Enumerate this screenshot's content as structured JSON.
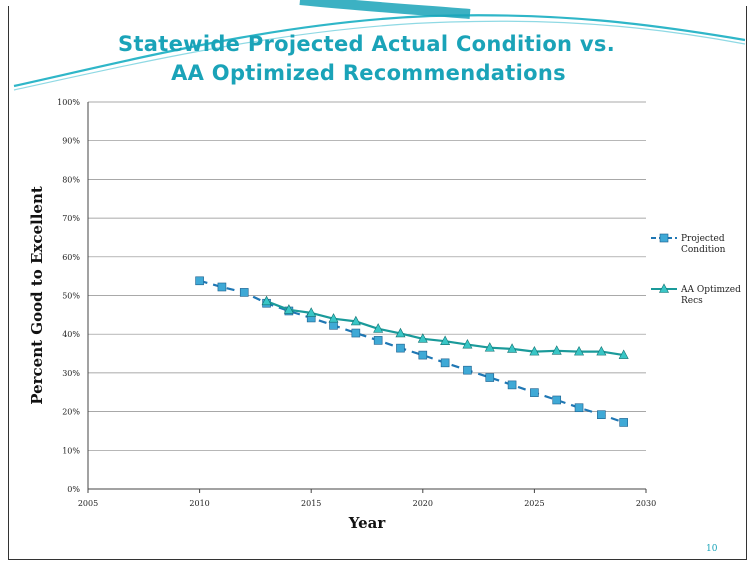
{
  "slide": {
    "title_line_1": "Statewide Projected Actual Condition vs.",
    "title_line_2": "AA Optimized Recommendations",
    "page_number": "10"
  },
  "colors": {
    "title": "#1aa3b8",
    "series_1": "#1f77b4",
    "series_1_marker": "#3fa9d6",
    "series_2": "#1a9a9a",
    "series_2_marker": "#39c6c6",
    "gridline": "#8c8c8c"
  },
  "chart_data": {
    "type": "line",
    "title": "",
    "xlabel": "Year",
    "ylabel": "Percent Good to Excellent",
    "xlim": [
      2005,
      2030
    ],
    "ylim": [
      0,
      100
    ],
    "x_ticks": [
      "2005",
      "2010",
      "2015",
      "2020",
      "2025",
      "2030"
    ],
    "y_ticks": [
      "0%",
      "10%",
      "20%",
      "30%",
      "40%",
      "50%",
      "60%",
      "70%",
      "80%",
      "90%",
      "100%"
    ],
    "grid": "horizontal",
    "legend_position": "right",
    "series": [
      {
        "name": "Projected Condition",
        "style": "dashed",
        "marker": "square",
        "x": [
          2010,
          2011,
          2012,
          2013,
          2014,
          2015,
          2016,
          2017,
          2018,
          2019,
          2020,
          2021,
          2022,
          2023,
          2024,
          2025,
          2026,
          2027,
          2028,
          2029
        ],
        "y": [
          53.8,
          52.2,
          50.8,
          48.0,
          46.0,
          44.2,
          42.3,
          40.3,
          38.4,
          36.4,
          34.6,
          32.6,
          30.7,
          28.8,
          26.9,
          24.9,
          23.0,
          21.0,
          19.2,
          17.2
        ]
      },
      {
        "name": "AA Optimzed Recs",
        "style": "solid",
        "marker": "triangle",
        "x": [
          2013,
          2014,
          2015,
          2016,
          2017,
          2018,
          2019,
          2020,
          2021,
          2022,
          2023,
          2024,
          2025,
          2026,
          2027,
          2028,
          2029
        ],
        "y": [
          48.5,
          46.3,
          45.5,
          44.0,
          43.3,
          41.4,
          40.2,
          38.8,
          38.2,
          37.3,
          36.5,
          36.2,
          35.5,
          35.7,
          35.5,
          35.5,
          34.6
        ]
      }
    ]
  }
}
